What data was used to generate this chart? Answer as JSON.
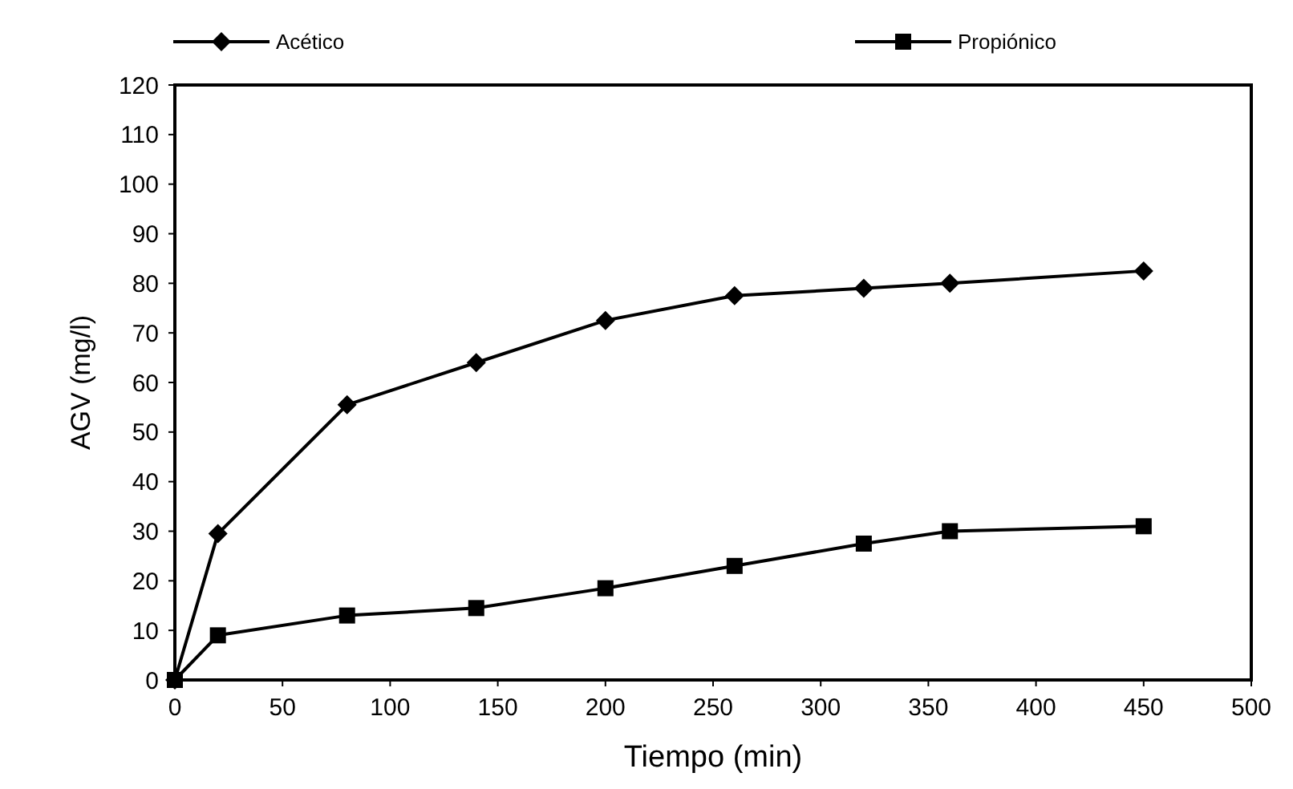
{
  "chart_data": {
    "type": "line",
    "xlabel": "Tiempo (min)",
    "ylabel": "AGV (mg/l)",
    "xlim": [
      0,
      500
    ],
    "xticks": [
      0,
      50,
      100,
      150,
      200,
      250,
      300,
      350,
      400,
      450,
      500
    ],
    "ylim": [
      0,
      120
    ],
    "yticks": [
      0,
      10,
      20,
      30,
      40,
      50,
      60,
      70,
      80,
      90,
      100,
      110,
      120
    ],
    "grid": false,
    "legend": "top",
    "line_style": "solid",
    "series": [
      {
        "name": "Acético",
        "color": "#000000",
        "marker": "diamond",
        "x": [
          0,
          20,
          80,
          140,
          200,
          260,
          320,
          360,
          450
        ],
        "values": [
          0,
          29.5,
          55.5,
          64,
          72.5,
          77.5,
          79,
          80,
          82.5
        ]
      },
      {
        "name": "Propiónico",
        "color": "#000000",
        "marker": "square",
        "x": [
          0,
          20,
          80,
          140,
          200,
          260,
          320,
          360,
          450
        ],
        "values": [
          0,
          9,
          13,
          14.5,
          18.5,
          23,
          27.5,
          30,
          31
        ]
      }
    ]
  }
}
